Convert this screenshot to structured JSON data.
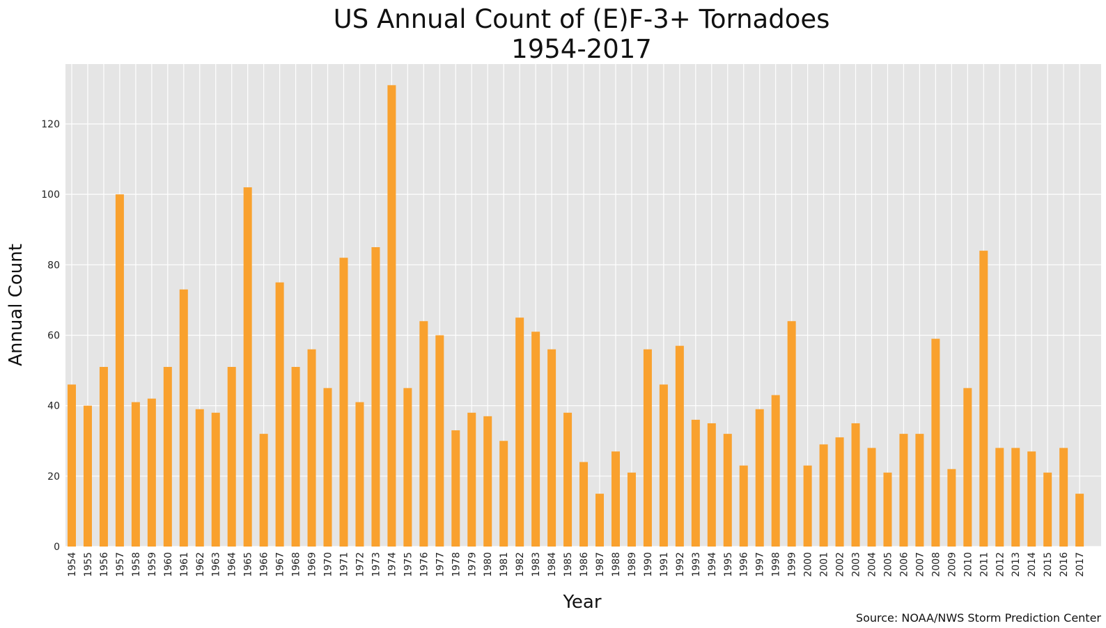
{
  "chart_data": {
    "type": "bar",
    "title": "US Annual Count of (E)F-3+ Tornadoes",
    "subtitle": "1954-2017",
    "xlabel": "Year",
    "ylabel": "Annual Count",
    "source": "Source: NOAA/NWS Storm Prediction Center",
    "ylim": [
      0,
      137
    ],
    "yticks": [
      0,
      20,
      40,
      60,
      80,
      100,
      120
    ],
    "grid": true,
    "bar_color": "#F9A12E",
    "plot_background": "#E5E5E5",
    "categories": [
      "1954",
      "1955",
      "1956",
      "1957",
      "1958",
      "1959",
      "1960",
      "1961",
      "1962",
      "1963",
      "1964",
      "1965",
      "1966",
      "1967",
      "1968",
      "1969",
      "1970",
      "1971",
      "1972",
      "1973",
      "1974",
      "1975",
      "1976",
      "1977",
      "1978",
      "1979",
      "1980",
      "1981",
      "1982",
      "1983",
      "1984",
      "1985",
      "1986",
      "1987",
      "1988",
      "1989",
      "1990",
      "1991",
      "1992",
      "1993",
      "1994",
      "1995",
      "1996",
      "1997",
      "1998",
      "1999",
      "2000",
      "2001",
      "2002",
      "2003",
      "2004",
      "2005",
      "2006",
      "2007",
      "2008",
      "2009",
      "2010",
      "2011",
      "2012",
      "2013",
      "2014",
      "2015",
      "2016",
      "2017"
    ],
    "values": [
      46,
      40,
      51,
      100,
      41,
      42,
      51,
      73,
      39,
      38,
      51,
      102,
      32,
      75,
      51,
      56,
      45,
      82,
      41,
      85,
      131,
      45,
      64,
      60,
      33,
      38,
      37,
      30,
      65,
      61,
      56,
      38,
      24,
      15,
      27,
      21,
      56,
      46,
      57,
      36,
      35,
      32,
      23,
      39,
      43,
      64,
      23,
      29,
      31,
      35,
      28,
      21,
      32,
      32,
      59,
      22,
      45,
      84,
      28,
      28,
      27,
      21,
      28,
      15
    ]
  }
}
